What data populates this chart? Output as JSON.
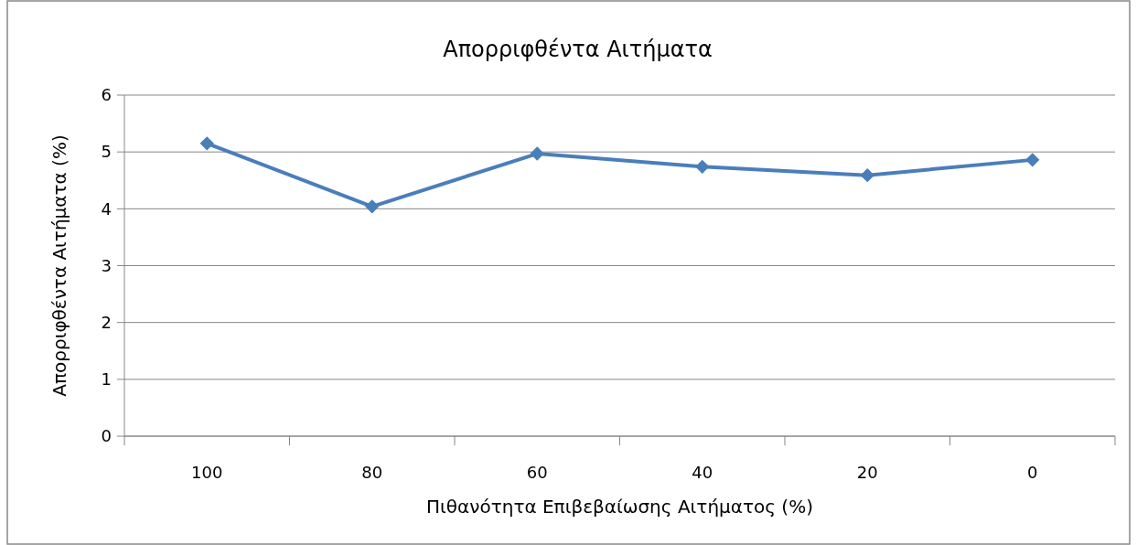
{
  "chart_data": {
    "type": "line",
    "title": "Απορριφθέντα Αιτήματα",
    "xlabel": "Πιθανότητα Επιβεβαίωσης Αιτήματος (%)",
    "ylabel": "Απορριφθέντα Αιτήματα (%)",
    "categories": [
      "100",
      "80",
      "60",
      "40",
      "20",
      "0"
    ],
    "series": [
      {
        "color": "#4a7ebb",
        "values": [
          5.15,
          4.04,
          4.97,
          4.74,
          4.59,
          4.86
        ]
      }
    ],
    "ylim": [
      0,
      6
    ],
    "yticks": [
      0,
      1,
      2,
      3,
      4,
      5,
      6
    ],
    "grid": "y",
    "marker": "diamond",
    "line_style": "solid"
  }
}
